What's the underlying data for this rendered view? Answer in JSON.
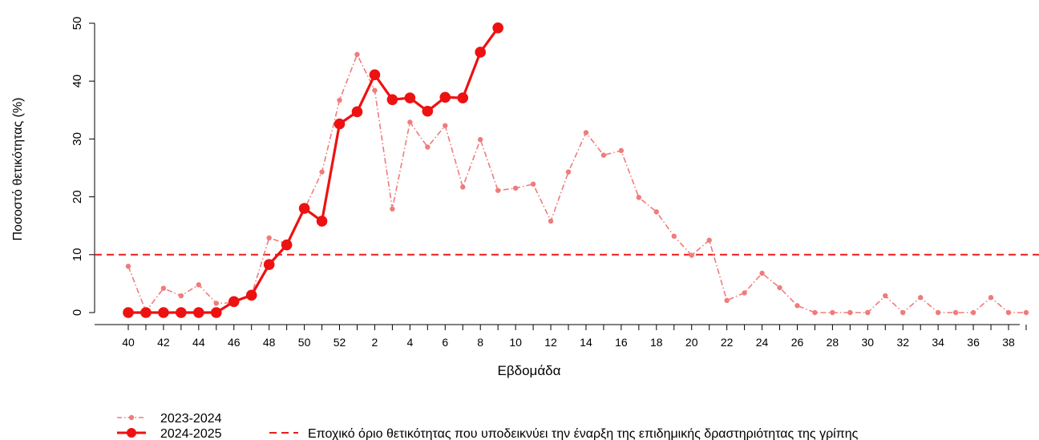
{
  "chart_data": {
    "type": "line",
    "xlabel": "Εβδομάδα",
    "ylabel": "Ποσοστό θετικότητας (%)",
    "ylim": [
      0,
      50
    ],
    "yticks": [
      0,
      10,
      20,
      30,
      40,
      50
    ],
    "weeks": [
      40,
      41,
      42,
      43,
      44,
      45,
      46,
      47,
      48,
      49,
      50,
      51,
      52,
      1,
      2,
      3,
      4,
      5,
      6,
      7,
      8,
      9,
      10,
      11,
      12,
      13,
      14,
      15,
      16,
      17,
      18,
      19,
      20,
      21,
      22,
      23,
      24,
      25,
      26,
      27,
      28,
      29,
      30,
      31,
      32,
      33,
      34,
      35,
      36,
      37,
      38,
      39
    ],
    "xtick_labels": [
      "40",
      "42",
      "44",
      "46",
      "48",
      "50",
      "52",
      "2",
      "4",
      "6",
      "8",
      "10",
      "12",
      "14",
      "16",
      "18",
      "20",
      "22",
      "24",
      "26",
      "28",
      "30",
      "32",
      "34",
      "36",
      "38"
    ],
    "threshold": {
      "value": 10,
      "label": "Εποχικό όριο θετικότητας που υποδεικνύει την έναρξη της επιδημικής δραστηριότητας της γρίπης",
      "color": "#ee1c1c"
    },
    "series": [
      {
        "name": "2023-2024",
        "color": "#f07b7b",
        "style": "dashdot",
        "values": [
          8.0,
          0.2,
          4.2,
          2.9,
          4.8,
          1.6,
          1.7,
          3.0,
          12.9,
          11.9,
          17.8,
          24.3,
          36.7,
          44.6,
          38.4,
          17.9,
          32.9,
          28.6,
          32.3,
          21.7,
          29.9,
          21.1,
          21.5,
          22.2,
          15.8,
          24.3,
          31.1,
          27.2,
          28.0,
          19.9,
          17.4,
          13.2,
          9.9,
          12.5,
          2.1,
          3.4,
          6.8,
          4.3,
          1.2,
          0.0,
          0.0,
          0.0,
          0.0,
          2.9,
          0.0,
          2.6,
          0.0,
          0.0,
          0.0,
          2.6,
          0.0,
          0.0
        ]
      },
      {
        "name": "2024-2025",
        "color": "#ee1111",
        "style": "solid",
        "values": [
          0.0,
          0.0,
          0.0,
          0.0,
          0.0,
          0.0,
          1.9,
          3.0,
          8.3,
          11.7,
          18.0,
          15.8,
          32.6,
          34.7,
          41.1,
          36.8,
          37.1,
          34.8,
          37.2,
          37.1,
          45.0,
          49.2
        ]
      }
    ],
    "legend_position": "bottom-left"
  }
}
